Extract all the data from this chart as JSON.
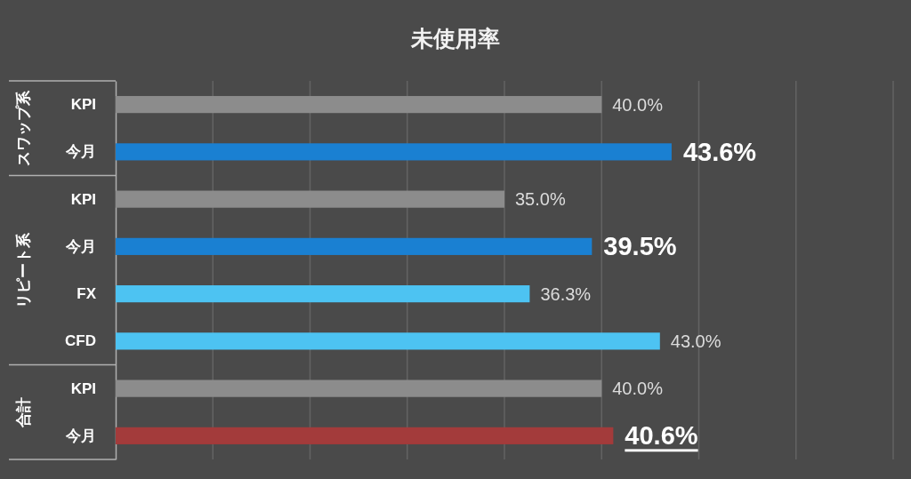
{
  "chart_data": {
    "type": "bar",
    "orientation": "horizontal",
    "title": "未使用率",
    "categories": [
      "KPI",
      "今月",
      "KPI",
      "今月",
      "FX",
      "CFD",
      "KPI",
      "今月"
    ],
    "values": [
      40.0,
      43.6,
      35.0,
      39.5,
      36.3,
      43.0,
      40.0,
      40.6
    ],
    "colors": [
      "#8c8c8c",
      "#1a80d2",
      "#8c8c8c",
      "#1a80d2",
      "#4dc3f2",
      "#4dc3f2",
      "#8c8c8c",
      "#a33b3b"
    ],
    "value_labels": [
      "40.0%",
      "43.6%",
      "35.0%",
      "39.5%",
      "36.3%",
      "43.0%",
      "40.0%",
      "40.6%"
    ],
    "xlim": [
      15,
      55
    ],
    "xticks": [
      {
        "value": 20,
        "label": null
      },
      {
        "value": 25,
        "label": null
      },
      {
        "value": 30,
        "label": null
      },
      {
        "value": 35,
        "label": null
      },
      {
        "value": 40,
        "label": null
      },
      {
        "value": 45,
        "label": null
      },
      {
        "value": 50,
        "label": null
      },
      {
        "value": 55,
        "label": null
      }
    ],
    "grid": "x",
    "tick_labels": "y",
    "annotations": [
      "スワップ系",
      "リピート系",
      "合計"
    ]
  }
}
